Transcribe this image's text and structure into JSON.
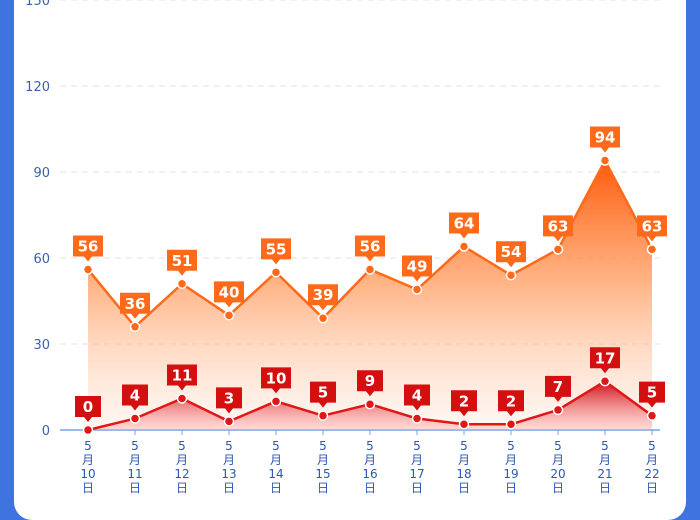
{
  "chart_data": {
    "type": "area",
    "title": "",
    "xlabel": "",
    "ylabel": "",
    "categories": [
      [
        "5",
        "月",
        "10",
        "日"
      ],
      [
        "5",
        "月",
        "11",
        "日"
      ],
      [
        "5",
        "月",
        "12",
        "日"
      ],
      [
        "5",
        "月",
        "13",
        "日"
      ],
      [
        "5",
        "月",
        "14",
        "日"
      ],
      [
        "5",
        "月",
        "15",
        "日"
      ],
      [
        "5",
        "月",
        "16",
        "日"
      ],
      [
        "5",
        "月",
        "17",
        "日"
      ],
      [
        "5",
        "月",
        "18",
        "日"
      ],
      [
        "5",
        "月",
        "19",
        "日"
      ],
      [
        "5",
        "月",
        "20",
        "日"
      ],
      [
        "5",
        "月",
        "21",
        "日"
      ],
      [
        "5",
        "月",
        "22",
        "日"
      ]
    ],
    "ylim": [
      0,
      150
    ],
    "yticks": [
      "0",
      "30",
      "60",
      "90",
      "120",
      "150"
    ],
    "grid": true,
    "series": [
      {
        "values": [
          56,
          36,
          51,
          40,
          55,
          39,
          56,
          49,
          64,
          54,
          63,
          94,
          63
        ],
        "color": "#ff6a1a",
        "label_color": "#ff6a1a"
      },
      {
        "values": [
          0,
          4,
          11,
          3,
          10,
          5,
          9,
          4,
          2,
          2,
          7,
          17,
          5
        ],
        "color": "#e01717",
        "label_color": "#d40f0f"
      }
    ]
  }
}
